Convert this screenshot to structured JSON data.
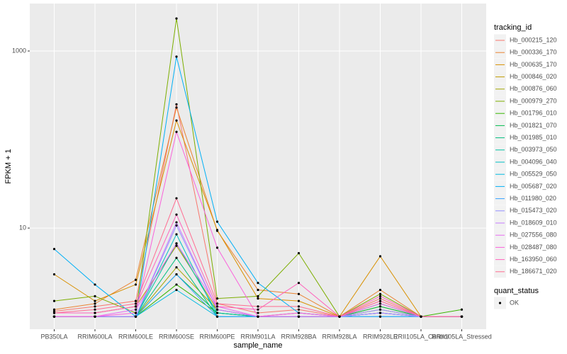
{
  "chart_data": {
    "type": "line",
    "log_y": true,
    "grid": true,
    "legend_position": "right",
    "x_label": "sample_name",
    "y_label": "FPKM + 1",
    "categories": [
      "PB350LA",
      "RRIM600LA",
      "RRIM600LE",
      "RRIM600SE",
      "RRIM600PE",
      "RRIM901LA",
      "RRIM928BA",
      "RRIM928LA",
      "RRIM928LE",
      "RRII105LA_Control",
      "RRII105LA_Stressed"
    ],
    "ylim": [
      0.72,
      3436
    ],
    "yticks": [
      10,
      1000
    ],
    "legend_title": "tracking_id",
    "point_legend": {
      "title": "quant_status",
      "labels": [
        "OK"
      ],
      "color": "#000000"
    },
    "series": [
      {
        "name": "Hb_000215_120",
        "color": "#F8766D",
        "values": [
          1.15,
          1.3,
          1.5,
          250,
          1.4,
          1.1,
          1.2,
          1.0,
          1.6,
          1.0,
          1.0
        ]
      },
      {
        "name": "Hb_000336_170",
        "color": "#EA8331",
        "values": [
          1.2,
          1.4,
          2.6,
          230,
          9.3,
          2.0,
          1.8,
          1.0,
          2.0,
          1.0,
          1.0
        ]
      },
      {
        "name": "Hb_000635_170",
        "color": "#D89000",
        "values": [
          3.0,
          1.5,
          2.3,
          164,
          9.5,
          1.6,
          1.5,
          1.0,
          4.8,
          1.0,
          1.0
        ]
      },
      {
        "name": "Hb_000846_020",
        "color": "#C09B00",
        "values": [
          1.1,
          1.1,
          1.3,
          6.3,
          1.2,
          1.0,
          1.1,
          1.0,
          1.3,
          1.0,
          1.0
        ]
      },
      {
        "name": "Hb_000876_060",
        "color": "#A3A500",
        "values": [
          1.0,
          1.0,
          1.0,
          3.6,
          1.2,
          1.0,
          1.0,
          1.0,
          1.2,
          1.0,
          1.0
        ]
      },
      {
        "name": "Hb_000979_270",
        "color": "#7CAE00",
        "values": [
          1.5,
          1.7,
          1.1,
          2330,
          1.6,
          1.7,
          5.2,
          1.0,
          1.8,
          1.0,
          1.0
        ]
      },
      {
        "name": "Hb_001796_010",
        "color": "#39B600",
        "values": [
          1.0,
          1.0,
          1.0,
          2.3,
          1.1,
          1.0,
          1.0,
          1.0,
          1.4,
          1.0,
          1.2
        ]
      },
      {
        "name": "Hb_001821_070",
        "color": "#00BB4E",
        "values": [
          1.0,
          1.0,
          1.0,
          3.0,
          1.1,
          1.0,
          1.0,
          1.0,
          1.3,
          1.0,
          1.0
        ]
      },
      {
        "name": "Hb_001985_010",
        "color": "#00BF7D",
        "values": [
          1.0,
          1.0,
          1.0,
          4.6,
          1.0,
          1.0,
          1.0,
          1.0,
          1.1,
          1.0,
          1.0
        ]
      },
      {
        "name": "Hb_003973_050",
        "color": "#00C1A3",
        "values": [
          1.0,
          1.0,
          1.0,
          6.7,
          1.1,
          1.0,
          1.0,
          1.0,
          1.1,
          1.0,
          1.0
        ]
      },
      {
        "name": "Hb_004096_040",
        "color": "#00BFC4",
        "values": [
          1.0,
          1.0,
          1.0,
          8.5,
          1.0,
          1.0,
          1.0,
          1.0,
          1.0,
          1.0,
          1.0
        ]
      },
      {
        "name": "Hb_005529_050",
        "color": "#00BAE0",
        "values": [
          1.0,
          1.0,
          1.0,
          2.0,
          1.0,
          1.0,
          1.0,
          1.0,
          1.0,
          1.0,
          1.0
        ]
      },
      {
        "name": "Hb_005687_020",
        "color": "#00B0F6",
        "values": [
          5.8,
          2.3,
          1.0,
          863,
          11.8,
          2.4,
          1.1,
          1.0,
          1.1,
          1.0,
          1.0
        ]
      },
      {
        "name": "Hb_011980_020",
        "color": "#35A2FF",
        "values": [
          1.0,
          1.0,
          1.0,
          3.0,
          1.0,
          1.0,
          1.0,
          1.0,
          1.0,
          1.0,
          1.0
        ]
      },
      {
        "name": "Hb_015473_020",
        "color": "#9590FF",
        "values": [
          1.0,
          1.0,
          1.0,
          10.7,
          1.2,
          1.0,
          1.1,
          1.0,
          1.2,
          1.0,
          1.0
        ]
      },
      {
        "name": "Hb_018609_010",
        "color": "#C77CFF",
        "values": [
          1.0,
          1.0,
          1.0,
          11.6,
          1.2,
          1.0,
          1.0,
          1.0,
          1.1,
          1.0,
          1.0
        ]
      },
      {
        "name": "Hb_027556_080",
        "color": "#E76BF3",
        "values": [
          1.0,
          1.0,
          1.2,
          6.7,
          1.3,
          1.0,
          1.0,
          1.0,
          1.4,
          1.0,
          1.0
        ]
      },
      {
        "name": "Hb_028487_080",
        "color": "#FA62DB",
        "values": [
          1.0,
          1.0,
          1.1,
          122,
          6.0,
          1.0,
          1.1,
          1.0,
          1.5,
          1.0,
          1.0
        ]
      },
      {
        "name": "Hb_163950_060",
        "color": "#FF62BC",
        "values": [
          1.1,
          1.1,
          1.3,
          14.2,
          1.3,
          1.2,
          2.4,
          1.0,
          1.7,
          1.0,
          1.0
        ]
      },
      {
        "name": "Hb_186671_020",
        "color": "#FF6C91",
        "values": [
          1.1,
          1.2,
          1.4,
          21.7,
          1.4,
          1.3,
          1.3,
          1.0,
          1.5,
          1.0,
          1.0
        ]
      }
    ]
  }
}
